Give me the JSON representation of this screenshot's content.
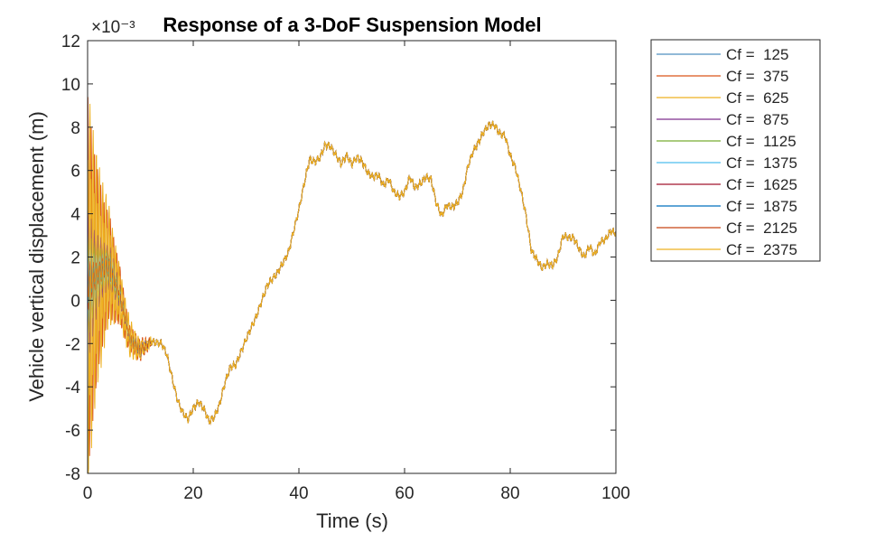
{
  "chart_data": {
    "type": "line",
    "title": "Response of a 3-DoF Suspension Model",
    "xlabel": "Time (s)",
    "ylabel": "Vehicle vertical displacement (m)",
    "y_exponent_label": "×10⁻³",
    "xlim": [
      0,
      100
    ],
    "ylim": [
      -8,
      12
    ],
    "x_ticks": [
      0,
      20,
      40,
      60,
      80,
      100
    ],
    "y_ticks": [
      -8,
      -6,
      -4,
      -2,
      0,
      2,
      4,
      6,
      8,
      10,
      12
    ],
    "y_unit_scale": 0.001,
    "grid": false,
    "legend_position": "outside-top-right",
    "road_profile": {
      "x": [
        0,
        2,
        4,
        6,
        8,
        10,
        12,
        14,
        15,
        16,
        17,
        18,
        19,
        20,
        21,
        22,
        23,
        24,
        25,
        26,
        27,
        28,
        30,
        32,
        34,
        36,
        38,
        40,
        41,
        42,
        43,
        44,
        45,
        46,
        47,
        48,
        49,
        50,
        51,
        52,
        53,
        54,
        55,
        56,
        57,
        58,
        59,
        60,
        61,
        62,
        63,
        64,
        65,
        66,
        67,
        68,
        69,
        70,
        71,
        72,
        73,
        74,
        75,
        76,
        77,
        78,
        79,
        80,
        81,
        82,
        83,
        84,
        85,
        86,
        87,
        88,
        89,
        90,
        91,
        92,
        93,
        94,
        95,
        96,
        97,
        98,
        99,
        100
      ],
      "y": [
        0.6,
        1.3,
        1.6,
        0.3,
        -1.8,
        -2.3,
        -1.9,
        -2.0,
        -2.5,
        -3.6,
        -4.6,
        -5.2,
        -5.5,
        -5.0,
        -4.7,
        -5.0,
        -5.6,
        -5.4,
        -4.8,
        -3.8,
        -3.1,
        -3.0,
        -1.8,
        -0.7,
        0.7,
        1.3,
        2.2,
        4.2,
        5.4,
        6.5,
        6.4,
        6.6,
        7.2,
        7.1,
        6.7,
        6.3,
        6.7,
        6.3,
        6.6,
        6.4,
        5.9,
        5.7,
        5.8,
        5.3,
        5.6,
        5.0,
        4.8,
        5.0,
        5.7,
        5.2,
        5.4,
        5.7,
        5.6,
        4.5,
        3.9,
        4.4,
        4.3,
        4.5,
        5.0,
        6.2,
        6.9,
        7.3,
        7.8,
        8.1,
        8.1,
        7.7,
        7.6,
        6.7,
        6.1,
        5.1,
        3.9,
        2.3,
        1.9,
        1.5,
        1.7,
        1.6,
        2.0,
        3.0,
        2.9,
        2.9,
        2.4,
        2.0,
        2.5,
        2.1,
        2.7,
        2.8,
        3.2,
        3.1
      ]
    },
    "series": [
      {
        "name": "Cf =  125",
        "color": "#4f8fbf",
        "osc_amplitude": 0.0
      },
      {
        "name": "Cf =  375",
        "color": "#d95319",
        "osc_amplitude": 0.9
      },
      {
        "name": "Cf =  625",
        "color": "#edb120",
        "osc_amplitude": 0.6
      },
      {
        "name": "Cf =  875",
        "color": "#7e2f8e",
        "osc_amplitude": 0.35
      },
      {
        "name": "Cf =  1125",
        "color": "#77ac30",
        "osc_amplitude": 0.25
      },
      {
        "name": "Cf =  1375",
        "color": "#4dbeee",
        "osc_amplitude": 0.18
      },
      {
        "name": "Cf =  1625",
        "color": "#a2142f",
        "osc_amplitude": 0.12
      },
      {
        "name": "Cf =  1875",
        "color": "#0072bd",
        "osc_amplitude": 0.08
      },
      {
        "name": "Cf =  2125",
        "color": "#c74314",
        "osc_amplitude": 0.05
      },
      {
        "name": "Cf =  2375",
        "color": "#edb120",
        "osc_amplitude": 1.0
      }
    ],
    "initial_oscillation": {
      "peak": 10.4,
      "trough": -6.7,
      "settle_time": 12
    }
  }
}
